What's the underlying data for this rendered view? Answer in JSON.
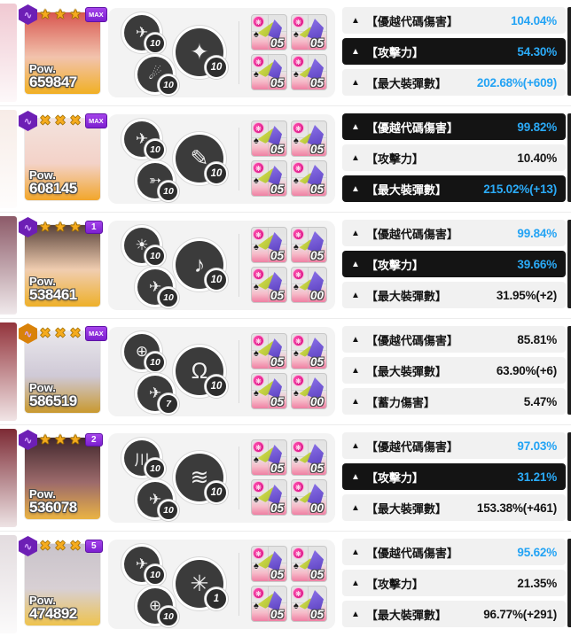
{
  "ui": {
    "pow_label": "Pow.",
    "stat_marker": "▲",
    "colors": {
      "accent_blue": "#23a3f4",
      "pill_dark": "#141414",
      "pill_light": "#f1f1f1",
      "star_gold": "#f5ab1e",
      "badge_purple": "#6d1fb5",
      "badge_orange": "#d9820a",
      "limit_purple": "#8a2fd0",
      "equip_badge_pink": "#cf0a7e"
    }
  },
  "rows": [
    {
      "power": "659847",
      "element_badge": {
        "icon": "element-hex-badge",
        "glyph": "∿",
        "color": "#6d1fb5"
      },
      "stars": {
        "count": 3,
        "glyph": "★"
      },
      "limit_badge": {
        "text": "MAX",
        "style": "max"
      },
      "skills": [
        {
          "icon": "jet-icon",
          "glyph": "✈",
          "level": "10"
        },
        {
          "icon": "comet-icon",
          "glyph": "☄",
          "level": "10"
        }
      ],
      "burst": {
        "icon": "burst-star-icon",
        "glyph": "✦",
        "level": "10"
      },
      "equipment": [
        {
          "level": "05"
        },
        {
          "level": "05"
        },
        {
          "level": "05"
        },
        {
          "level": "05"
        }
      ],
      "stats": [
        {
          "label": "【優越代碼傷害】",
          "value": "104.04%",
          "dark": false,
          "blue": true
        },
        {
          "label": "【攻擊力】",
          "value": "54.30%",
          "dark": true,
          "blue": true
        },
        {
          "label": "【最大裝彈數】",
          "value": "202.68%(+609)",
          "dark": false,
          "blue": true
        }
      ],
      "portrait": {
        "top": "#d8564f",
        "mid": "#f2c3ad",
        "bottom": "#f1b024"
      },
      "edge": "#f0c9d2"
    },
    {
      "power": "608145",
      "element_badge": {
        "icon": "element-hex-badge",
        "glyph": "∿",
        "color": "#6d1fb5"
      },
      "stars": {
        "count": 3,
        "glyph": "✖"
      },
      "limit_badge": {
        "text": "MAX",
        "style": "max"
      },
      "skills": [
        {
          "icon": "jet-icon",
          "glyph": "✈",
          "level": "10"
        },
        {
          "icon": "arrows-icon",
          "glyph": "➳",
          "level": "10"
        }
      ],
      "burst": {
        "icon": "carrot-icon",
        "glyph": "✎",
        "level": "10"
      },
      "equipment": [
        {
          "level": "05"
        },
        {
          "level": "05"
        },
        {
          "level": "05"
        },
        {
          "level": "05"
        }
      ],
      "stats": [
        {
          "label": "【優越代碼傷害】",
          "value": "99.82%",
          "dark": true,
          "blue": true
        },
        {
          "label": "【攻擊力】",
          "value": "10.40%",
          "dark": false,
          "blue": false
        },
        {
          "label": "【最大裝彈數】",
          "value": "215.02%(+13)",
          "dark": true,
          "blue": true
        }
      ],
      "portrait": {
        "top": "#f3e3de",
        "mid": "#f3d2c8",
        "bottom": "#f2a62b"
      },
      "edge": "#f7ece7"
    },
    {
      "power": "538461",
      "element_badge": {
        "icon": "element-hex-badge",
        "glyph": "∿",
        "color": "#6d1fb5"
      },
      "stars": {
        "count": 3,
        "glyph": "★"
      },
      "limit_badge": {
        "text": "1",
        "style": "num"
      },
      "skills": [
        {
          "icon": "impact-icon",
          "glyph": "☀",
          "level": "10"
        },
        {
          "icon": "jet-icon",
          "glyph": "✈",
          "level": "10"
        }
      ],
      "burst": {
        "icon": "music-note-icon",
        "glyph": "♪",
        "level": "10"
      },
      "equipment": [
        {
          "level": "05"
        },
        {
          "level": "05"
        },
        {
          "level": "05"
        },
        {
          "level": "00"
        }
      ],
      "stats": [
        {
          "label": "【優越代碼傷害】",
          "value": "99.84%",
          "dark": false,
          "blue": true
        },
        {
          "label": "【攻擊力】",
          "value": "39.66%",
          "dark": true,
          "blue": true
        },
        {
          "label": "【最大裝彈數】",
          "value": "31.95%(+2)",
          "dark": false,
          "blue": false
        }
      ],
      "portrait": {
        "top": "#584139",
        "mid": "#f0cdb0",
        "bottom": "#eeb02a"
      },
      "edge": "#8c5a68"
    },
    {
      "power": "586519",
      "element_badge": {
        "icon": "element-hex-badge",
        "glyph": "∿",
        "color": "#d9820a"
      },
      "stars": {
        "count": 3,
        "glyph": "✖"
      },
      "limit_badge": {
        "text": "MAX",
        "style": "max"
      },
      "skills": [
        {
          "icon": "crosshair-icon",
          "glyph": "⊕",
          "level": "10"
        },
        {
          "icon": "jet-icon",
          "glyph": "✈",
          "level": "7"
        }
      ],
      "burst": {
        "icon": "rabbit-icon",
        "glyph": "Ω",
        "level": "10"
      },
      "equipment": [
        {
          "level": "05"
        },
        {
          "level": "05"
        },
        {
          "level": "05"
        },
        {
          "level": "00"
        }
      ],
      "stats": [
        {
          "label": "【優越代碼傷害】",
          "value": "85.81%",
          "dark": false,
          "blue": false
        },
        {
          "label": "【最大裝彈數】",
          "value": "63.90%(+6)",
          "dark": false,
          "blue": false
        },
        {
          "label": "【蓄力傷害】",
          "value": "5.47%",
          "dark": false,
          "blue": false
        }
      ],
      "portrait": {
        "top": "#e9e7ec",
        "mid": "#cfc9d6",
        "bottom": "#c9992f"
      },
      "edge": "#93343c"
    },
    {
      "power": "536078",
      "element_badge": {
        "icon": "element-hex-badge",
        "glyph": "∿",
        "color": "#6d1fb5"
      },
      "stars": {
        "count": 3,
        "glyph": "★"
      },
      "limit_badge": {
        "text": "2",
        "style": "num"
      },
      "skills": [
        {
          "icon": "claw-icon",
          "glyph": "川",
          "level": "10"
        },
        {
          "icon": "jet-icon",
          "glyph": "✈",
          "level": "10"
        }
      ],
      "burst": {
        "icon": "wave-icon",
        "glyph": "≋",
        "level": "10"
      },
      "equipment": [
        {
          "level": "05"
        },
        {
          "level": "05"
        },
        {
          "level": "05"
        },
        {
          "level": "00"
        }
      ],
      "stats": [
        {
          "label": "【優越代碼傷害】",
          "value": "97.03%",
          "dark": false,
          "blue": true
        },
        {
          "label": "【攻擊力】",
          "value": "31.21%",
          "dark": true,
          "blue": true
        },
        {
          "label": "【最大裝彈數】",
          "value": "153.38%(+461)",
          "dark": false,
          "blue": false
        }
      ],
      "portrait": {
        "top": "#42282d",
        "mid": "#9c6a6b",
        "bottom": "#eab344"
      },
      "edge": "#7c2a34"
    },
    {
      "power": "474892",
      "element_badge": {
        "icon": "element-hex-badge",
        "glyph": "∿",
        "color": "#6d1fb5"
      },
      "stars": {
        "count": 3,
        "glyph": "✖"
      },
      "limit_badge": {
        "text": "5",
        "style": "num"
      },
      "skills": [
        {
          "icon": "jet-icon",
          "glyph": "✈",
          "level": "10"
        },
        {
          "icon": "crosshair-icon",
          "glyph": "⊕",
          "level": "10"
        }
      ],
      "burst": {
        "icon": "sparkle-icon",
        "glyph": "✳",
        "level": "1"
      },
      "equipment": [
        {
          "level": "05"
        },
        {
          "level": "05"
        },
        {
          "level": "05"
        },
        {
          "level": "05"
        }
      ],
      "stats": [
        {
          "label": "【優越代碼傷害】",
          "value": "95.62%",
          "dark": false,
          "blue": true
        },
        {
          "label": "【攻擊力】",
          "value": "21.35%",
          "dark": false,
          "blue": false
        },
        {
          "label": "【最大裝彈數】",
          "value": "96.77%(+291)",
          "dark": false,
          "blue": false
        }
      ],
      "portrait": {
        "top": "#c9c3ca",
        "mid": "#d8d0d4",
        "bottom": "#eec34e"
      },
      "edge": "#e3dcdf"
    }
  ]
}
